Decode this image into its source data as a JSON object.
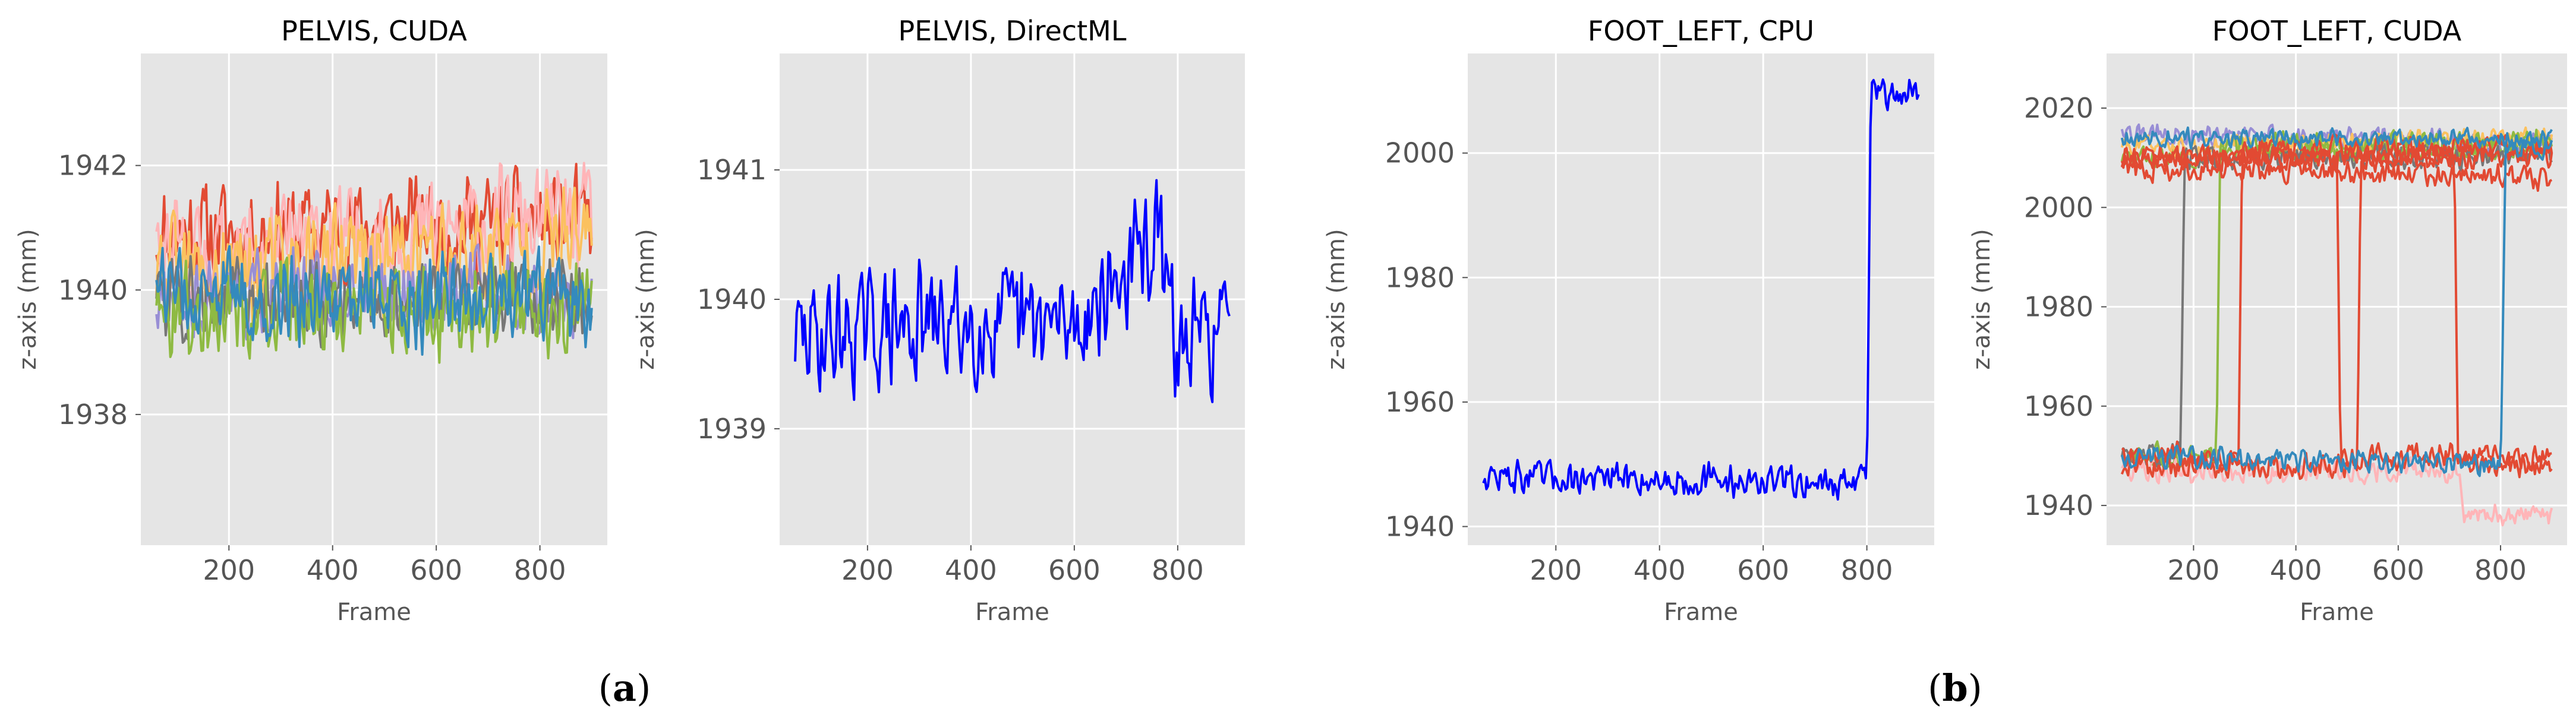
{
  "chart_data": [
    {
      "type": "line",
      "title": "PELVIS, CUDA",
      "xlabel": "Frame",
      "ylabel": "z-axis (mm)",
      "xlim": [
        30,
        930
      ],
      "ylim": [
        1935.9,
        1943.8
      ],
      "xticks": [
        200,
        400,
        600,
        800
      ],
      "yticks": [
        1938,
        1940,
        1942
      ],
      "grid": true,
      "seed": 11,
      "series": [
        {
          "color": "#E24A33",
          "base": [
            [
              60,
              1940.9
            ],
            [
              400,
              1941.0
            ],
            [
              900,
              1941.1
            ]
          ],
          "noise": 1.0
        },
        {
          "color": "#FFB5B8",
          "base": [
            [
              60,
              1940.5
            ],
            [
              400,
              1940.8
            ],
            [
              900,
              1941.2
            ]
          ],
          "noise": 1.0
        },
        {
          "color": "#FBC15E",
          "base": [
            [
              60,
              1940.2
            ],
            [
              900,
              1940.8
            ]
          ],
          "noise": 1.1
        },
        {
          "color": "#988ED5",
          "base": [
            [
              60,
              1939.9
            ],
            [
              900,
              1940.0
            ]
          ],
          "noise": 0.8
        },
        {
          "color": "#777777",
          "base": [
            [
              60,
              1939.8
            ],
            [
              900,
              1939.9
            ]
          ],
          "noise": 0.8
        },
        {
          "color": "#8EBA42",
          "base": [
            [
              60,
              1939.6
            ],
            [
              900,
              1939.7
            ]
          ],
          "noise": 0.9
        },
        {
          "color": "#348ABD",
          "base": [
            [
              60,
              1939.9
            ],
            [
              900,
              1939.8
            ]
          ],
          "noise": 0.9
        }
      ]
    },
    {
      "type": "line",
      "title": "PELVIS, DirectML",
      "xlabel": "Frame",
      "ylabel": "z-axis (mm)",
      "xlim": [
        30,
        930
      ],
      "ylim": [
        1938.1,
        1941.9
      ],
      "xticks": [
        200,
        400,
        600,
        800
      ],
      "yticks": [
        1939,
        1940,
        1941
      ],
      "grid": true,
      "seed": 29,
      "series": [
        {
          "color": "#0000FF",
          "base": [
            [
              60,
              1939.7
            ],
            [
              300,
              1939.8
            ],
            [
              600,
              1939.8
            ],
            [
              700,
              1940.2
            ],
            [
              760,
              1940.5
            ],
            [
              800,
              1939.6
            ],
            [
              900,
              1939.8
            ]
          ],
          "noise": 0.55
        }
      ]
    },
    {
      "type": "line",
      "title": "FOOT_LEFT, CPU",
      "xlabel": "Frame",
      "ylabel": "z-axis (mm)",
      "xlim": [
        30,
        930
      ],
      "ylim": [
        1937,
        2016
      ],
      "xticks": [
        200,
        400,
        600,
        800
      ],
      "yticks": [
        1940,
        1960,
        1980,
        2000
      ],
      "grid": true,
      "seed": 47,
      "series": [
        {
          "color": "#0000FF",
          "base": [
            [
              60,
              1948
            ],
            [
              780,
              1947
            ],
            [
              800,
              1950
            ],
            [
              808,
              2009
            ],
            [
              900,
              2010
            ]
          ],
          "noise": 3.2
        }
      ]
    },
    {
      "type": "line",
      "title": "FOOT_LEFT, CUDA",
      "xlabel": "Frame",
      "ylabel": "z-axis (mm)",
      "xlim": [
        30,
        930
      ],
      "ylim": [
        1932,
        2031
      ],
      "xticks": [
        200,
        400,
        600,
        800
      ],
      "yticks": [
        1940,
        1960,
        1980,
        2000,
        2020
      ],
      "grid": true,
      "seed": 83,
      "series": [
        {
          "color": "#8EBA42",
          "base": [
            [
              60,
              2010
            ],
            [
              900,
              2012
            ]
          ],
          "noise": 2.5
        },
        {
          "color": "#988ED5",
          "base": [
            [
              60,
              2015
            ],
            [
              900,
              2013
            ]
          ],
          "noise": 2.5
        },
        {
          "color": "#FBC15E",
          "base": [
            [
              60,
              2012
            ],
            [
              900,
              2014
            ]
          ],
          "noise": 2.5
        },
        {
          "color": "#777777",
          "base": [
            [
              60,
              1950
            ],
            [
              175,
              1950
            ],
            [
              182,
              2010
            ],
            [
              900,
              2010
            ]
          ],
          "noise": 3.0
        },
        {
          "color": "#8EBA42",
          "base": [
            [
              60,
              1950
            ],
            [
              245,
              1950
            ],
            [
              252,
              2013
            ],
            [
              900,
              2013
            ]
          ],
          "noise": 3.0
        },
        {
          "color": "#FFB5B8",
          "base": [
            [
              60,
              1947
            ],
            [
              720,
              1947
            ],
            [
              730,
              1938
            ],
            [
              900,
              1938
            ]
          ],
          "noise": 2.8
        },
        {
          "color": "#E24A33",
          "base": [
            [
              60,
              2008
            ],
            [
              900,
              2006
            ]
          ],
          "noise": 3.0
        },
        {
          "color": "#E24A33",
          "base": [
            [
              60,
              1950
            ],
            [
              288,
              1950
            ],
            [
              295,
              2012
            ],
            [
              900,
              2012
            ]
          ],
          "noise": 3.0
        },
        {
          "color": "#E24A33",
          "base": [
            [
              60,
              2010
            ],
            [
              480,
              2010
            ],
            [
              487,
              1950
            ],
            [
              900,
              1950
            ]
          ],
          "noise": 3.0
        },
        {
          "color": "#E24A33",
          "base": [
            [
              60,
              1948
            ],
            [
              520,
              1948
            ],
            [
              527,
              2010
            ],
            [
              900,
              2010
            ]
          ],
          "noise": 3.0
        },
        {
          "color": "#E24A33",
          "base": [
            [
              60,
              2010
            ],
            [
              710,
              2010
            ],
            [
              717,
              1948
            ],
            [
              900,
              1948
            ]
          ],
          "noise": 3.0
        },
        {
          "color": "#348ABD",
          "base": [
            [
              60,
              2014
            ],
            [
              900,
              2014
            ]
          ],
          "noise": 2.2
        },
        {
          "color": "#348ABD",
          "base": [
            [
              60,
              1950
            ],
            [
              800,
              1948
            ],
            [
              810,
              2012
            ],
            [
              900,
              2012
            ]
          ],
          "noise": 2.6
        }
      ]
    }
  ],
  "figure": {
    "labels": [
      "(a)",
      "(b)"
    ]
  }
}
